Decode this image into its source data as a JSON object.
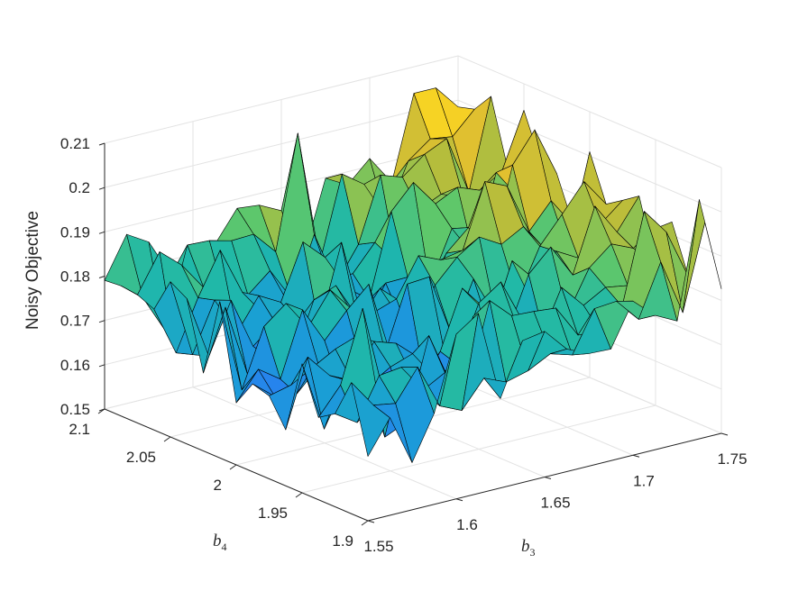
{
  "chart_data": {
    "type": "surface",
    "zlabel": "Noisy Objective",
    "xlabel": "b",
    "xlabel_sub": "3",
    "ylabel": "b",
    "ylabel_sub": "4",
    "x_ticks": [
      "1.55",
      "1.6",
      "1.65",
      "1.7",
      "1.75"
    ],
    "y_ticks": [
      "1.9",
      "1.95",
      "2",
      "2.05",
      "2.1"
    ],
    "z_ticks": [
      "0.15",
      "0.16",
      "0.17",
      "0.18",
      "0.19",
      "0.2",
      "0.21"
    ],
    "xlim": [
      1.55,
      1.75
    ],
    "ylim": [
      1.9,
      2.1
    ],
    "zlim": [
      0.15,
      0.21
    ],
    "grid": true,
    "colormap": "parula",
    "colormap_stops": [
      "#3e26a8",
      "#4743f8",
      "#2c78f7",
      "#1a9ed6",
      "#1fb8a9",
      "#5ec76b",
      "#b5bd3c",
      "#f4c12a",
      "#f9fb15"
    ],
    "edge_color": "#000000",
    "surface_model": {
      "description_of_trend": "Objective is roughly 0.17 near b3=1.6, b4=2.0 and rises to about 0.2 toward b3=1.75, b4=2.1; noisy spikes of about +/-0.015.",
      "grid_x": [
        1.55,
        1.5625,
        1.575,
        1.5875,
        1.6,
        1.6125,
        1.625,
        1.6375,
        1.65,
        1.6625,
        1.675,
        1.6875,
        1.7,
        1.7125,
        1.725,
        1.7375,
        1.75
      ],
      "grid_y": [
        1.9,
        1.9125,
        1.925,
        1.9375,
        1.95,
        1.9625,
        1.975,
        1.9875,
        2.0,
        2.0125,
        2.025,
        2.0375,
        2.05,
        2.0625,
        2.075,
        2.0875,
        2.1
      ],
      "z_min_observed": 0.152,
      "z_max_observed": 0.204
    }
  }
}
